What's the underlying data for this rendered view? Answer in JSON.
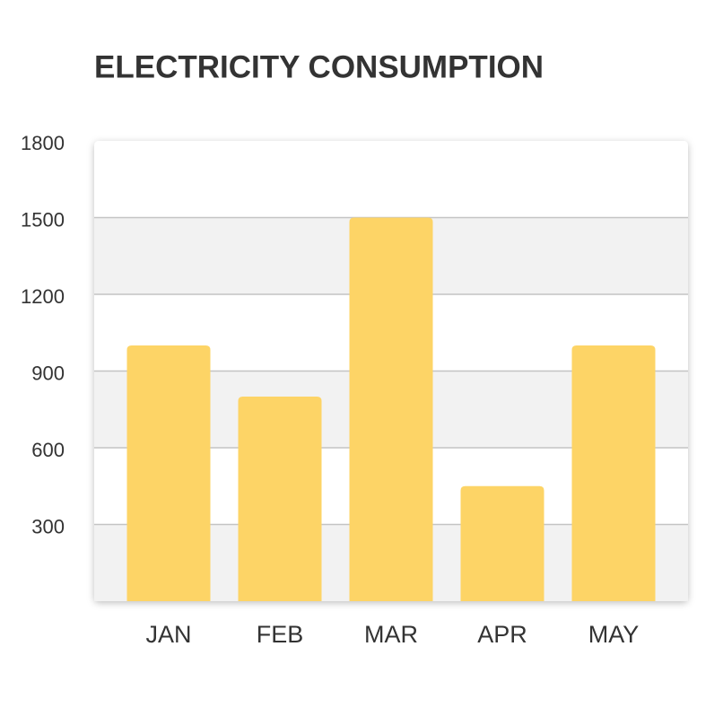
{
  "chart_data": {
    "type": "bar",
    "title": "ELECTRICITY CONSUMPTION",
    "categories": [
      "JAN",
      "FEB",
      "MAR",
      "APR",
      "MAY"
    ],
    "values": [
      1000,
      800,
      1500,
      450,
      1000
    ],
    "color": "#fdd466",
    "ylim": [
      0,
      1800
    ],
    "yticks": [
      300,
      600,
      900,
      1200,
      1500,
      1800
    ],
    "grid": true
  }
}
